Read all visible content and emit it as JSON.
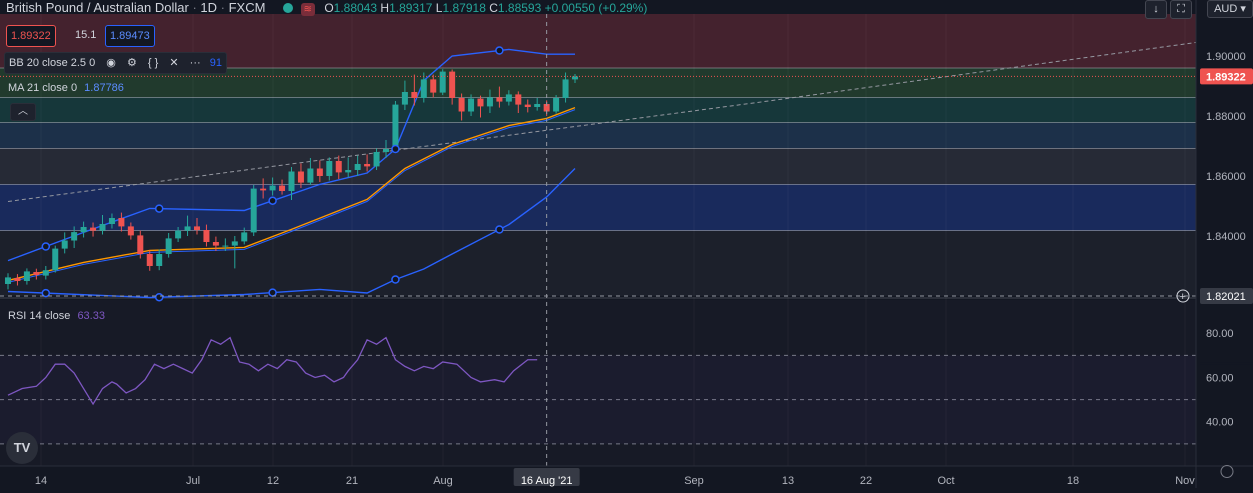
{
  "header": {
    "symbol": "British Pound / Australian Dollar",
    "interval": "1D",
    "exchange": "FXCM",
    "o_label": "O",
    "o_value": "1.88043",
    "h_label": "H",
    "h_value": "1.89317",
    "l_label": "L",
    "l_value": "1.87918",
    "c_label": "C",
    "c_value": "1.88593 +0.00550 (+0.29%)",
    "sell_price": "1.89322",
    "spread": "15.1",
    "buy_price": "1.89473",
    "currency": "AUD"
  },
  "indicators": {
    "bb_label": "BB 20 close 2.5 0",
    "bb_value_partial": "91",
    "ma_label": "MA 21 close 0",
    "ma_value": "1.87786",
    "collapse_icon": "chevron-up-icon",
    "rsi_label": "RSI 14 close",
    "rsi_value": "63.33"
  },
  "price_axis": {
    "labels": [
      "1.90000",
      "1.88000",
      "1.86000",
      "1.84000"
    ],
    "current_price": "1.89322",
    "crosshair_price": "1.82021",
    "rsi_labels": [
      "80.00",
      "60.00",
      "40.00"
    ]
  },
  "time_axis": {
    "labels": [
      "14",
      "Jul",
      "12",
      "21",
      "Aug",
      "Sep",
      "13",
      "22",
      "Oct",
      "18",
      "Nov"
    ],
    "crosshair_date": "16 Aug '21"
  },
  "logo_text": "TV",
  "chart_data": {
    "type": "candlestick",
    "symbol": "GBPAUD",
    "ylim": [
      1.82,
      1.914
    ],
    "rsi_ylim": [
      20,
      95
    ],
    "colors": {
      "up": "#26a69a",
      "down": "#ef5350",
      "bb": "#2962ff",
      "ma": "#ff9800",
      "rsi": "#7e57c2",
      "fib_zones": [
        "#4d2430",
        "#24412f",
        "#173d3e",
        "#1f3550",
        "#2a2e39",
        "#1b2e66"
      ]
    },
    "fib_levels": [
      1.914,
      1.896,
      1.8862,
      1.8778,
      1.8692,
      1.8572,
      1.8418,
      1.82
    ],
    "candles": [
      [
        1.824,
        1.8262,
        1.8222,
        1.8276
      ],
      [
        1.826,
        1.825,
        1.8235,
        1.8273
      ],
      [
        1.825,
        1.8282,
        1.8238,
        1.8292
      ],
      [
        1.828,
        1.827,
        1.8255,
        1.8291
      ],
      [
        1.8268,
        1.8286,
        1.8255,
        1.83
      ],
      [
        1.8286,
        1.8358,
        1.8278,
        1.8368
      ],
      [
        1.8358,
        1.8385,
        1.8342,
        1.8412
      ],
      [
        1.8385,
        1.8413,
        1.836,
        1.8432
      ],
      [
        1.8413,
        1.843,
        1.8395,
        1.8448
      ],
      [
        1.8428,
        1.8418,
        1.8398,
        1.8445
      ],
      [
        1.8418,
        1.844,
        1.8405,
        1.847
      ],
      [
        1.844,
        1.846,
        1.8425,
        1.8475
      ],
      [
        1.846,
        1.8432,
        1.8415,
        1.8478
      ],
      [
        1.8432,
        1.8402,
        1.8388,
        1.8445
      ],
      [
        1.8402,
        1.834,
        1.8325,
        1.8418
      ],
      [
        1.834,
        1.83,
        1.8284,
        1.8352
      ],
      [
        1.83,
        1.834,
        1.8286,
        1.8355
      ],
      [
        1.834,
        1.8392,
        1.8328,
        1.841
      ],
      [
        1.8392,
        1.8418,
        1.838,
        1.843
      ],
      [
        1.8418,
        1.8432,
        1.84,
        1.8468
      ],
      [
        1.8432,
        1.842,
        1.8405,
        1.846
      ],
      [
        1.842,
        1.838,
        1.8365,
        1.8438
      ],
      [
        1.838,
        1.8368,
        1.835,
        1.8398
      ],
      [
        1.8368,
        1.8368,
        1.835,
        1.8392
      ],
      [
        1.8368,
        1.8382,
        1.8292,
        1.84
      ],
      [
        1.8382,
        1.8412,
        1.8372,
        1.8428
      ],
      [
        1.8412,
        1.8558,
        1.84,
        1.857
      ],
      [
        1.8558,
        1.8552,
        1.8525,
        1.8592
      ],
      [
        1.8552,
        1.8568,
        1.8535,
        1.8595
      ],
      [
        1.8568,
        1.855,
        1.8538,
        1.8588
      ],
      [
        1.855,
        1.8615,
        1.852,
        1.863
      ],
      [
        1.8615,
        1.8578,
        1.856,
        1.8642
      ],
      [
        1.8578,
        1.8625,
        1.857,
        1.866
      ],
      [
        1.8625,
        1.86,
        1.858,
        1.8652
      ],
      [
        1.86,
        1.865,
        1.8585,
        1.8662
      ],
      [
        1.865,
        1.8612,
        1.859,
        1.8668
      ],
      [
        1.8612,
        1.862,
        1.8595,
        1.8662
      ],
      [
        1.862,
        1.864,
        1.86,
        1.8668
      ],
      [
        1.864,
        1.8632,
        1.8615,
        1.8672
      ],
      [
        1.8632,
        1.868,
        1.862,
        1.8692
      ],
      [
        1.868,
        1.869,
        1.866,
        1.872
      ],
      [
        1.869,
        1.8838,
        1.868,
        1.885
      ],
      [
        1.8838,
        1.888,
        1.882,
        1.8918
      ],
      [
        1.888,
        1.886,
        1.8835,
        1.8938
      ],
      [
        1.886,
        1.8922,
        1.8845,
        1.8945
      ],
      [
        1.8922,
        1.8878,
        1.8862,
        1.8938
      ],
      [
        1.8878,
        1.8948,
        1.887,
        1.8956
      ],
      [
        1.8948,
        1.886,
        1.8838,
        1.8955
      ],
      [
        1.886,
        1.8815,
        1.8785,
        1.8875
      ],
      [
        1.8815,
        1.8858,
        1.88,
        1.8872
      ],
      [
        1.8858,
        1.8832,
        1.8795,
        1.8868
      ],
      [
        1.8832,
        1.8862,
        1.881,
        1.8888
      ],
      [
        1.8862,
        1.8848,
        1.8828,
        1.8898
      ],
      [
        1.8848,
        1.8872,
        1.8835,
        1.8886
      ],
      [
        1.8872,
        1.8838,
        1.881,
        1.8882
      ],
      [
        1.8838,
        1.883,
        1.8812,
        1.8855
      ],
      [
        1.883,
        1.884,
        1.8818,
        1.886
      ],
      [
        1.884,
        1.8815,
        1.88,
        1.8852
      ],
      [
        1.8815,
        1.886,
        1.8808,
        1.887
      ],
      [
        1.886,
        1.8922,
        1.8845,
        1.8945
      ],
      [
        1.8922,
        1.8932,
        1.891,
        1.894
      ]
    ],
    "bb_upper": [
      [
        0,
        1.8318
      ],
      [
        8,
        1.8412
      ],
      [
        15,
        1.8492
      ],
      [
        25,
        1.8485
      ],
      [
        33,
        1.8572
      ],
      [
        38,
        1.861
      ],
      [
        41,
        1.869
      ],
      [
        44,
        1.8918
      ],
      [
        47,
        1.9
      ],
      [
        53,
        1.9022
      ],
      [
        57,
        1.9006
      ],
      [
        60,
        1.9006
      ]
    ],
    "bb_lower": [
      [
        0,
        1.8215
      ],
      [
        15,
        1.8195
      ],
      [
        25,
        1.8205
      ],
      [
        33,
        1.8222
      ],
      [
        38,
        1.821
      ],
      [
        41,
        1.8255
      ],
      [
        44,
        1.829
      ],
      [
        47,
        1.834
      ],
      [
        53,
        1.8438
      ],
      [
        57,
        1.853
      ],
      [
        60,
        1.8625
      ]
    ],
    "ma": [
      [
        0,
        1.8252
      ],
      [
        8,
        1.8312
      ],
      [
        15,
        1.8352
      ],
      [
        25,
        1.8362
      ],
      [
        30,
        1.8422
      ],
      [
        38,
        1.8522
      ],
      [
        42,
        1.8625
      ],
      [
        47,
        1.8705
      ],
      [
        53,
        1.8768
      ],
      [
        57,
        1.8792
      ],
      [
        60,
        1.8828
      ]
    ],
    "trendline": [
      [
        0,
        1.8515
      ],
      [
        28,
        1.8632
      ],
      [
        80,
        1.8848
      ],
      [
        128,
        1.9055
      ]
    ],
    "rsi": [
      [
        0,
        52
      ],
      [
        3,
        55
      ],
      [
        6,
        56
      ],
      [
        8,
        60
      ],
      [
        10,
        66
      ],
      [
        12,
        66
      ],
      [
        14,
        62
      ],
      [
        16,
        55
      ],
      [
        18,
        48
      ],
      [
        20,
        55
      ],
      [
        22,
        58
      ],
      [
        23,
        57
      ],
      [
        25,
        53
      ],
      [
        27,
        55
      ],
      [
        29,
        59
      ],
      [
        31,
        66
      ],
      [
        33,
        64
      ],
      [
        35,
        66
      ],
      [
        37,
        64
      ],
      [
        39,
        62
      ],
      [
        41,
        68
      ],
      [
        43,
        77
      ],
      [
        45,
        75
      ],
      [
        47,
        78
      ],
      [
        49,
        67
      ],
      [
        51,
        66
      ],
      [
        53,
        63
      ],
      [
        55,
        66
      ],
      [
        57,
        64
      ],
      [
        59,
        68
      ],
      [
        61,
        67
      ],
      [
        63,
        62
      ],
      [
        65,
        60
      ],
      [
        67,
        61
      ],
      [
        69,
        58
      ],
      [
        71,
        60
      ],
      [
        72,
        63
      ],
      [
        74,
        68
      ],
      [
        76,
        77
      ],
      [
        78,
        75
      ],
      [
        80,
        78
      ],
      [
        82,
        68
      ],
      [
        84,
        65
      ],
      [
        86,
        63
      ],
      [
        88,
        65
      ],
      [
        90,
        64
      ],
      [
        92,
        67
      ],
      [
        95,
        66
      ],
      [
        98,
        60
      ],
      [
        100,
        58
      ],
      [
        103,
        59
      ],
      [
        105,
        58
      ],
      [
        107,
        63
      ],
      [
        110,
        68
      ],
      [
        112,
        68
      ]
    ],
    "rsi_levels": [
      70,
      50,
      30
    ],
    "crosshair_index": 57
  }
}
